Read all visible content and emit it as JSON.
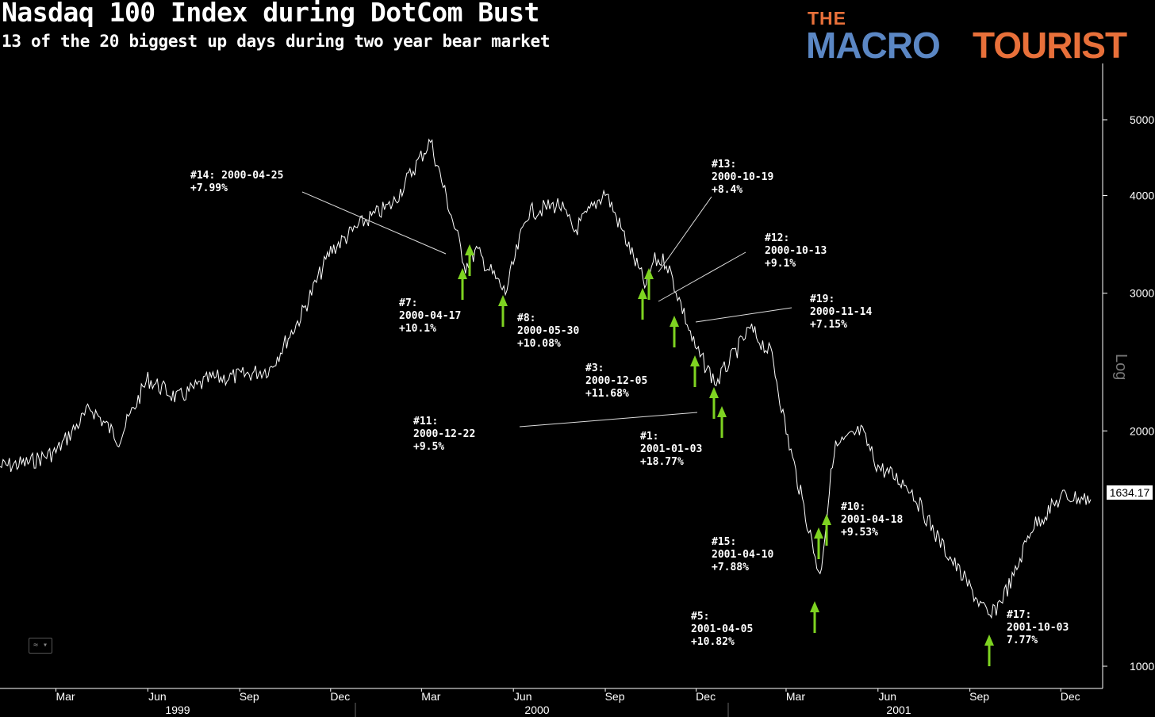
{
  "title": "Nasdaq 100 Index during DotCom Bust",
  "subtitle": "13 of the 20 biggest up days during two year bear market",
  "logo": {
    "the": "THE",
    "macro": "MACRO",
    "tourist": "TOURIST"
  },
  "axis": {
    "scale_label": "Log",
    "last_value": "1634.17"
  },
  "colors": {
    "background": "#000000",
    "price_line": "#ffffff",
    "arrow": "#7ed321",
    "logo_blue": "#5b87c4",
    "logo_orange": "#e8703a"
  },
  "chart_data": {
    "type": "line",
    "title": "Nasdaq 100 Index during DotCom Bust",
    "subtitle": "13 of the 20 biggest up days during two year bear market",
    "yscale": "log",
    "ylim": [
      960,
      5400
    ],
    "y_ticks": [
      "5000",
      "4000",
      "3000",
      "2000",
      "1000"
    ],
    "x_month_ticks": [
      "Mar",
      "Jun",
      "Sep",
      "Dec",
      "Mar",
      "Jun",
      "Sep",
      "Dec",
      "Mar",
      "Jun",
      "Sep",
      "Dec"
    ],
    "x_year_labels": [
      "1999",
      "2000",
      "2001"
    ],
    "series": [
      {
        "x": [
          "1999-01-04",
          "1999-02-01",
          "1999-03-01",
          "1999-04-05",
          "1999-05-03",
          "1999-06-01",
          "1999-07-01",
          "1999-08-02",
          "1999-09-01",
          "1999-10-01",
          "1999-11-01",
          "1999-12-01",
          "2000-01-03",
          "2000-02-01",
          "2000-03-10",
          "2000-04-14",
          "2000-04-25",
          "2000-05-24",
          "2000-06-15",
          "2000-07-17",
          "2000-08-01",
          "2000-09-01",
          "2000-10-12",
          "2000-10-19",
          "2000-11-01",
          "2000-11-14",
          "2000-11-30",
          "2000-12-21",
          "2001-01-03",
          "2001-01-24",
          "2001-02-15",
          "2001-03-01",
          "2001-04-04",
          "2001-04-18",
          "2001-05-15",
          "2001-06-01",
          "2001-07-02",
          "2001-08-01",
          "2001-09-21",
          "2001-10-15",
          "2001-11-01",
          "2001-12-03",
          "2001-12-31"
        ],
        "values": [
          1800,
          1820,
          1880,
          2140,
          1950,
          2330,
          2200,
          2330,
          2350,
          2400,
          2800,
          3400,
          3700,
          3900,
          4700,
          3250,
          3400,
          3000,
          3800,
          3900,
          3600,
          4050,
          3050,
          3300,
          3300,
          2950,
          2550,
          2300,
          2450,
          2700,
          2500,
          2000,
          1300,
          1900,
          2000,
          1800,
          1700,
          1450,
          1150,
          1300,
          1500,
          1650,
          1634.17
        ]
      }
    ],
    "annotations": [
      {
        "rank": "#14:",
        "date": "2000-04-25",
        "change": "+7.99%"
      },
      {
        "rank": "#7:",
        "date": "2000-04-17",
        "change": "+10.1%"
      },
      {
        "rank": "#8:",
        "date": "2000-05-30",
        "change": "+10.08%"
      },
      {
        "rank": "#13:",
        "date": "2000-10-19",
        "change": "+8.4%"
      },
      {
        "rank": "#12:",
        "date": "2000-10-13",
        "change": "+9.1%"
      },
      {
        "rank": "#19:",
        "date": "2000-11-14",
        "change": "+7.15%"
      },
      {
        "rank": "#3:",
        "date": "2000-12-05",
        "change": "+11.68%"
      },
      {
        "rank": "#11:",
        "date": "2000-12-22",
        "change": "+9.5%"
      },
      {
        "rank": "#1:",
        "date": "2001-01-03",
        "change": "+18.77%"
      },
      {
        "rank": "#10:",
        "date": "2001-04-18",
        "change": "+9.53%"
      },
      {
        "rank": "#15:",
        "date": "2001-04-10",
        "change": "+7.88%"
      },
      {
        "rank": "#5:",
        "date": "2001-04-05",
        "change": "+10.82%"
      },
      {
        "rank": "#17:",
        "date": "2001-10-03",
        "change": "7.77%"
      }
    ]
  }
}
